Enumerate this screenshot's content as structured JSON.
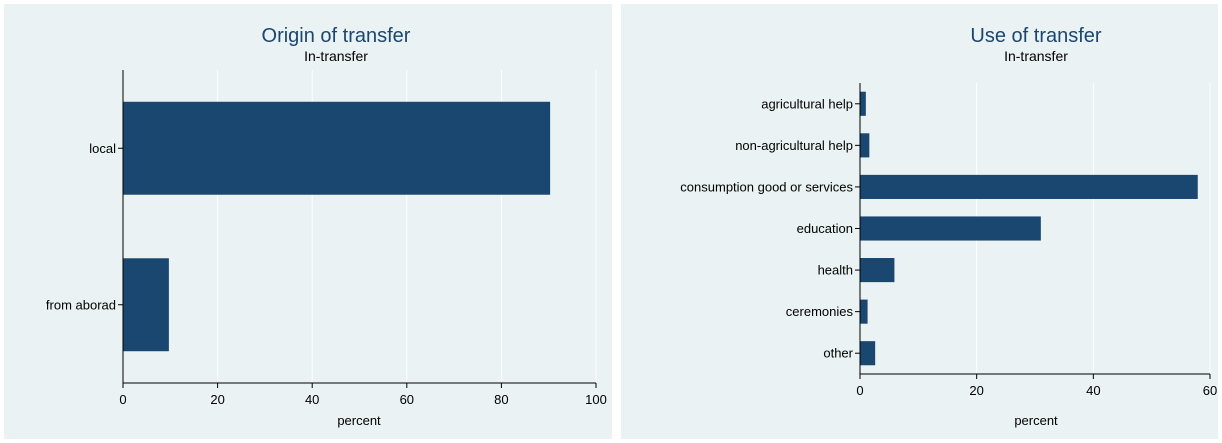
{
  "chart_data": [
    {
      "type": "bar",
      "orientation": "horizontal",
      "title": "Origin of transfer",
      "subtitle": "In-transfer",
      "xlabel": "percent",
      "categories": [
        "local",
        "from aborad"
      ],
      "values": [
        90.3,
        9.7
      ],
      "xlim": [
        0,
        100
      ],
      "xticks": [
        0,
        20,
        40,
        60,
        80,
        100
      ],
      "grid": true,
      "bar_color": "#1a476f",
      "background_color": "#eaf2f3"
    },
    {
      "type": "bar",
      "orientation": "horizontal",
      "title": "Use of transfer",
      "subtitle": "In-transfer",
      "xlabel": "percent",
      "categories": [
        "agricultural help",
        "non-agricultural help",
        "consumption good or services",
        "education",
        "health",
        "ceremonies",
        "other"
      ],
      "values": [
        1.0,
        1.6,
        57.9,
        31.0,
        5.9,
        1.3,
        2.6
      ],
      "xlim": [
        0,
        60
      ],
      "xticks": [
        0,
        20,
        40,
        60
      ],
      "grid": true,
      "bar_color": "#1a476f",
      "background_color": "#eaf2f3"
    }
  ]
}
